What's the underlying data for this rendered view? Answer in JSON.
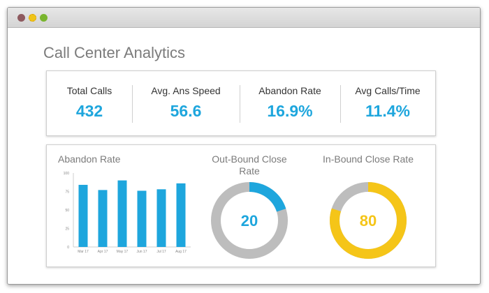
{
  "page": {
    "title": "Call Center Analytics"
  },
  "kpis": [
    {
      "label": "Total Calls",
      "value": "432"
    },
    {
      "label": "Avg. Ans Speed",
      "value": "56.6"
    },
    {
      "label": "Abandon Rate",
      "value": "16.9%"
    },
    {
      "label": "Avg Calls/Time",
      "value": "11.4%"
    }
  ],
  "colors": {
    "accent": "#1ea6dd",
    "yellow": "#f5c518",
    "ring_gray": "#bdbdbd"
  },
  "chart_data": [
    {
      "type": "bar",
      "title": "Abandon Rate",
      "categories": [
        "Mar 17",
        "Apr 17",
        "May 17",
        "Jun 17",
        "Jul 17",
        "Aug 17"
      ],
      "values": [
        84,
        77,
        90,
        76,
        78,
        86
      ],
      "ylim": [
        0,
        100
      ],
      "yticks": [
        0,
        25,
        50,
        75,
        100
      ],
      "grid": false
    },
    {
      "type": "pie",
      "title": "Out-Bound Close Rate",
      "center_label": "20",
      "value": 20,
      "total": 100,
      "color": "#1ea6dd"
    },
    {
      "type": "pie",
      "title": "In-Bound Close Rate",
      "center_label": "80",
      "value": 80,
      "total": 100,
      "color": "#f5c518"
    }
  ]
}
